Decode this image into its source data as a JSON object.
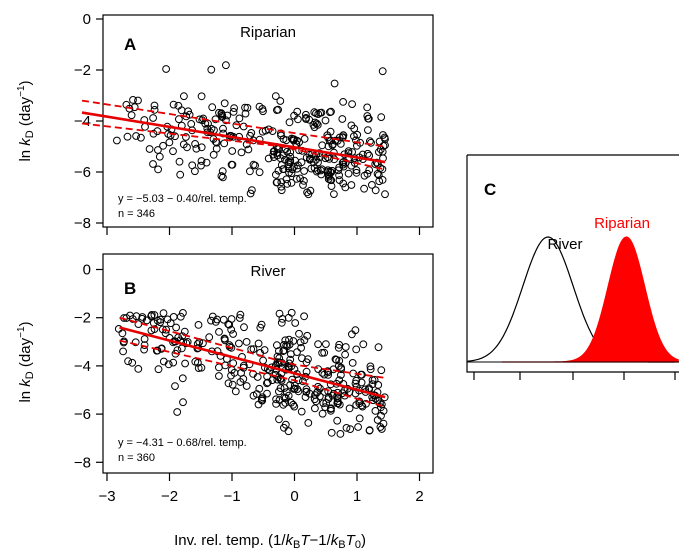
{
  "figure": {
    "xlabel": "Inv. rel. temp. (1/kBT−1/kBT0)",
    "ylabel": "ln kD (day⁻¹)"
  },
  "chart_data": [
    {
      "panel": "A",
      "type": "scatter",
      "title": "Riparian",
      "xlim": [
        -3.5,
        2.1
      ],
      "ylim": [
        -8,
        0
      ],
      "xticks": [
        -3,
        -2,
        -1,
        0,
        1,
        2
      ],
      "yticks": [
        0,
        -2,
        -4,
        -6,
        -8
      ],
      "ytick_labels": [
        "0",
        "−2",
        "−4",
        "−6",
        "−8"
      ],
      "equation": "y = −5.03 − 0.40/rel. temp.",
      "n_label": "n = 346",
      "n": 346,
      "fit": {
        "intercept": -5.03,
        "slope": -0.4,
        "x_range": [
          -3.4,
          1.45
        ]
      },
      "confidence_band": {
        "upper": [
          [
            -3.4,
            -3.2
          ],
          [
            -0.2,
            -4.4
          ],
          [
            1.45,
            -5.0
          ]
        ],
        "lower": [
          [
            -3.4,
            -4.1
          ],
          [
            -0.2,
            -5.0
          ],
          [
            1.45,
            -5.9
          ]
        ]
      },
      "line_color": "#e60000",
      "marker": "open-circle",
      "seed": 11
    },
    {
      "panel": "B",
      "type": "scatter",
      "title": "River",
      "xlim": [
        -3.5,
        2.1
      ],
      "ylim": [
        -8,
        0
      ],
      "xticks": [
        -3,
        -2,
        -1,
        0,
        1,
        2
      ],
      "xtick_labels": [
        "−3",
        "−2",
        "−1",
        "0",
        "1",
        "2"
      ],
      "yticks": [
        0,
        -2,
        -4,
        -6,
        -8
      ],
      "ytick_labels": [
        "0",
        "−2",
        "−4",
        "−6",
        "−8"
      ],
      "equation": "y = −4.31 − 0.68/rel. temp.",
      "n_label": "n = 360",
      "n": 360,
      "fit": {
        "intercept": -4.31,
        "slope": -0.68,
        "x_range": [
          -2.8,
          1.45
        ]
      },
      "confidence_band": {
        "upper": [
          [
            -2.8,
            -2.0
          ],
          [
            0.0,
            -3.95
          ],
          [
            1.45,
            -4.5
          ]
        ],
        "lower": [
          [
            -2.8,
            -2.95
          ],
          [
            0.0,
            -4.6
          ],
          [
            1.45,
            -5.7
          ]
        ]
      },
      "line_color": "#e60000",
      "marker": "open-circle",
      "seed": 29
    },
    {
      "panel": "C",
      "type": "area",
      "series": [
        {
          "name": "River",
          "mean": 0.68,
          "sd": 0.09,
          "fill": "none",
          "color": "#000000"
        },
        {
          "name": "Riparian",
          "mean": 0.4,
          "sd": 0.065,
          "fill": "#ff0000",
          "color": "#ff0000"
        }
      ],
      "label_colors": {
        "River": "#000000",
        "Riparian": "#ff0000"
      }
    }
  ]
}
